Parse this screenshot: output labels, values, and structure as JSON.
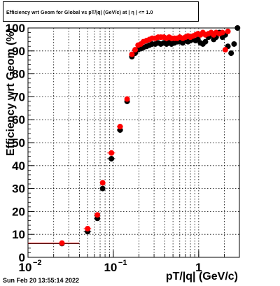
{
  "colors": {
    "frame": "#000000",
    "grid": "#000000",
    "global": "#000000",
    "geom": "#ff0000"
  },
  "timestamp": "Sun Feb 20 13:55:14 2022",
  "chart_data": {
    "type": "scatter",
    "title": "Efficiency wrt Geom for Global vs pT/|q| (GeV/c) at | η | <= 1.0",
    "xlabel": "pT/|q| (GeV/c)",
    "ylabel": "Efficiency wrt Geom (%)",
    "xscale": "log",
    "xlim": [
      0.01,
      3.0
    ],
    "ylim": [
      0,
      100
    ],
    "grid": true,
    "legend": "none",
    "xticks": [
      {
        "value": 0.01,
        "label": "10",
        "exp": "−2"
      },
      {
        "value": 0.1,
        "label": "10",
        "exp": "−1"
      },
      {
        "value": 1,
        "label": "1",
        "exp": ""
      }
    ],
    "yticks": [
      0,
      10,
      20,
      30,
      40,
      50,
      60,
      70,
      80,
      90,
      100
    ],
    "series": [
      {
        "color": "#000000",
        "points": [
          {
            "x": 0.025,
            "y": 6,
            "xlo": 0.01,
            "xhi": 0.04
          },
          {
            "x": 0.05,
            "y": 11.2,
            "xlo": 0.045,
            "xhi": 0.055
          },
          {
            "x": 0.065,
            "y": 17,
            "xlo": 0.06,
            "xhi": 0.07
          },
          {
            "x": 0.075,
            "y": 30,
            "xlo": 0.07,
            "xhi": 0.08
          },
          {
            "x": 0.095,
            "y": 43,
            "xlo": 0.085,
            "xhi": 0.105
          },
          {
            "x": 0.12,
            "y": 55.5,
            "xlo": 0.11,
            "xhi": 0.13
          },
          {
            "x": 0.145,
            "y": 68,
            "xlo": 0.14,
            "xhi": 0.15
          },
          {
            "x": 0.165,
            "y": 87.5
          },
          {
            "x": 0.18,
            "y": 89
          },
          {
            "x": 0.195,
            "y": 90.5
          },
          {
            "x": 0.21,
            "y": 91
          },
          {
            "x": 0.225,
            "y": 91.5
          },
          {
            "x": 0.245,
            "y": 92
          },
          {
            "x": 0.265,
            "y": 92.5
          },
          {
            "x": 0.285,
            "y": 93
          },
          {
            "x": 0.31,
            "y": 93
          },
          {
            "x": 0.335,
            "y": 93.5
          },
          {
            "x": 0.36,
            "y": 93
          },
          {
            "x": 0.39,
            "y": 93.5
          },
          {
            "x": 0.42,
            "y": 93
          },
          {
            "x": 0.45,
            "y": 94
          },
          {
            "x": 0.48,
            "y": 93
          },
          {
            "x": 0.52,
            "y": 93.5
          },
          {
            "x": 0.56,
            "y": 94
          },
          {
            "x": 0.6,
            "y": 94
          },
          {
            "x": 0.65,
            "y": 93.5
          },
          {
            "x": 0.7,
            "y": 94.5
          },
          {
            "x": 0.75,
            "y": 94
          },
          {
            "x": 0.8,
            "y": 94.5
          },
          {
            "x": 0.86,
            "y": 95
          },
          {
            "x": 0.92,
            "y": 94.5
          },
          {
            "x": 0.98,
            "y": 95
          },
          {
            "x": 1.05,
            "y": 93.5
          },
          {
            "x": 1.12,
            "y": 93
          },
          {
            "x": 1.2,
            "y": 94
          },
          {
            "x": 1.3,
            "y": 96
          },
          {
            "x": 1.4,
            "y": 97
          },
          {
            "x": 1.5,
            "y": 95
          },
          {
            "x": 1.6,
            "y": 96
          },
          {
            "x": 1.75,
            "y": 98
          },
          {
            "x": 1.9,
            "y": 96
          },
          {
            "x": 2.05,
            "y": 97
          },
          {
            "x": 2.2,
            "y": 92
          },
          {
            "x": 2.4,
            "y": 89
          },
          {
            "x": 2.6,
            "y": 93
          },
          {
            "x": 2.85,
            "y": 100
          }
        ]
      },
      {
        "color": "#ff0000",
        "points": [
          {
            "x": 0.025,
            "y": 6.2,
            "xlo": 0.01,
            "xhi": 0.04
          },
          {
            "x": 0.05,
            "y": 12.5,
            "xlo": 0.045,
            "xhi": 0.055
          },
          {
            "x": 0.065,
            "y": 18.5,
            "xlo": 0.06,
            "xhi": 0.07
          },
          {
            "x": 0.075,
            "y": 32.5,
            "xlo": 0.07,
            "xhi": 0.08
          },
          {
            "x": 0.095,
            "y": 45.5,
            "xlo": 0.085,
            "xhi": 0.105
          },
          {
            "x": 0.12,
            "y": 57,
            "xlo": 0.11,
            "xhi": 0.13
          },
          {
            "x": 0.145,
            "y": 69,
            "xlo": 0.14,
            "xhi": 0.15
          },
          {
            "x": 0.165,
            "y": 88.5
          },
          {
            "x": 0.18,
            "y": 90.5
          },
          {
            "x": 0.195,
            "y": 92.5
          },
          {
            "x": 0.21,
            "y": 93
          },
          {
            "x": 0.225,
            "y": 94
          },
          {
            "x": 0.245,
            "y": 94.5
          },
          {
            "x": 0.265,
            "y": 95
          },
          {
            "x": 0.285,
            "y": 95.5
          },
          {
            "x": 0.31,
            "y": 95.5
          },
          {
            "x": 0.335,
            "y": 96
          },
          {
            "x": 0.36,
            "y": 96
          },
          {
            "x": 0.39,
            "y": 96
          },
          {
            "x": 0.42,
            "y": 95.5
          },
          {
            "x": 0.45,
            "y": 96
          },
          {
            "x": 0.48,
            "y": 95.5
          },
          {
            "x": 0.52,
            "y": 95.5
          },
          {
            "x": 0.56,
            "y": 95.5
          },
          {
            "x": 0.6,
            "y": 96
          },
          {
            "x": 0.65,
            "y": 95.5
          },
          {
            "x": 0.7,
            "y": 96
          },
          {
            "x": 0.75,
            "y": 96.5
          },
          {
            "x": 0.8,
            "y": 96
          },
          {
            "x": 0.86,
            "y": 96.5
          },
          {
            "x": 0.92,
            "y": 97
          },
          {
            "x": 0.98,
            "y": 97.5
          },
          {
            "x": 1.05,
            "y": 97
          },
          {
            "x": 1.12,
            "y": 98
          },
          {
            "x": 1.2,
            "y": 97
          },
          {
            "x": 1.3,
            "y": 97.5
          },
          {
            "x": 1.4,
            "y": 98
          },
          {
            "x": 1.5,
            "y": 97
          },
          {
            "x": 1.6,
            "y": 98
          },
          {
            "x": 1.75,
            "y": 97.5
          },
          {
            "x": 1.9,
            "y": 98
          },
          {
            "x": 2.05,
            "y": 90.5
          },
          {
            "x": 2.2,
            "y": 98.5
          }
        ]
      }
    ]
  }
}
